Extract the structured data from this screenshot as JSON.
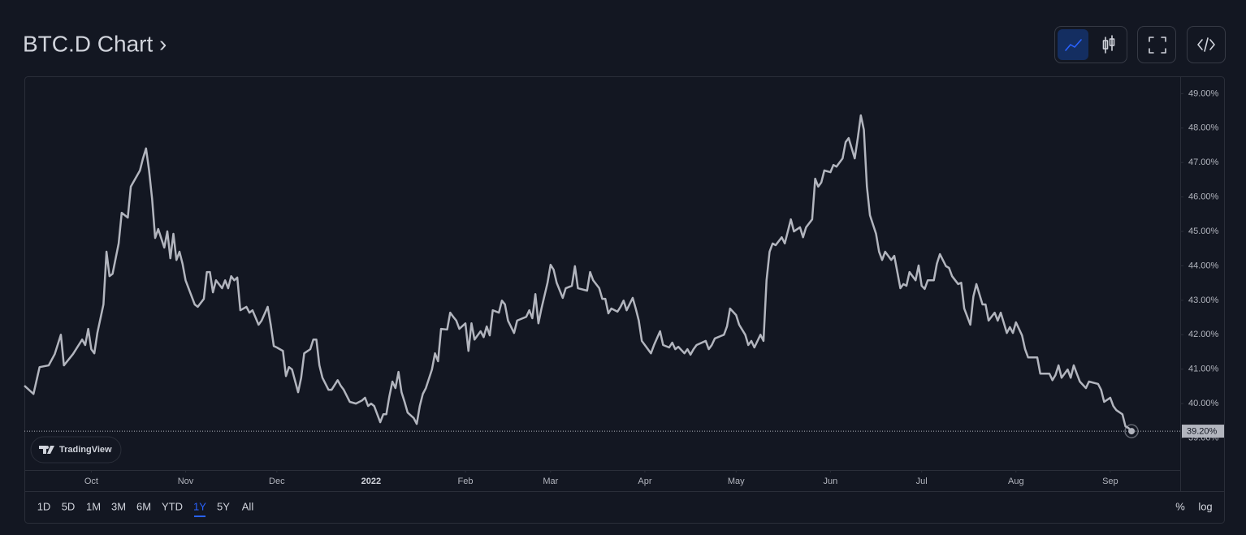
{
  "header": {
    "title": "BTC.D Chart ›"
  },
  "chart_data": {
    "type": "line",
    "x": [
      -22,
      -19,
      -17,
      -14,
      -12,
      -10,
      -9,
      -6,
      -3,
      -2,
      -1,
      0,
      1,
      2,
      4,
      5,
      6,
      7,
      9,
      10,
      12,
      13,
      16,
      17,
      18,
      19,
      20,
      21,
      22,
      24,
      25,
      26,
      27,
      28,
      29,
      30,
      31,
      34,
      35,
      37,
      38,
      39,
      40,
      41,
      43,
      44,
      45,
      46,
      47,
      48,
      49,
      51,
      52,
      53,
      55,
      56,
      58,
      59,
      60,
      61,
      63,
      64,
      65,
      66,
      68,
      69,
      70,
      72,
      73,
      74,
      75,
      76,
      78,
      79,
      81,
      82,
      83,
      85,
      87,
      89,
      90,
      91,
      92,
      93,
      95,
      96,
      97,
      98,
      99,
      100,
      101,
      102,
      103,
      104,
      106,
      107,
      108,
      109,
      110,
      112,
      113,
      114,
      115,
      117,
      118,
      119,
      120,
      121,
      123,
      124,
      125,
      126,
      128,
      129,
      130,
      131,
      132,
      134,
      135,
      136,
      137,
      139,
      140,
      143,
      144,
      145,
      146,
      147,
      148,
      150,
      151,
      152,
      153,
      155,
      156,
      158,
      159,
      160,
      163,
      164,
      165,
      167,
      168,
      169,
      170,
      171,
      173,
      174,
      175,
      176,
      178,
      179,
      180,
      181,
      183,
      184,
      185,
      187,
      188,
      190,
      191,
      192,
      193,
      195,
      196,
      197,
      198,
      199,
      202,
      203,
      204,
      205,
      208,
      209,
      210,
      212,
      213,
      215,
      216,
      217,
      218,
      220,
      221,
      222,
      223,
      224,
      225,
      227,
      228,
      229,
      230,
      231,
      233,
      234,
      235,
      237,
      238,
      239,
      240,
      241,
      243,
      244,
      245,
      247,
      248,
      249,
      251,
      252,
      253,
      254,
      255,
      256,
      258,
      259,
      260,
      261,
      263,
      264,
      266,
      267,
      268,
      269,
      271,
      272,
      273,
      274,
      275,
      277,
      278,
      279,
      281,
      282,
      283,
      285,
      286,
      287,
      289,
      290,
      291,
      293,
      294,
      295,
      297,
      298,
      299,
      301,
      302,
      303,
      304,
      306,
      307,
      308,
      311,
      312,
      315,
      316,
      317,
      318,
      319,
      321,
      322,
      323,
      324,
      325,
      327,
      328,
      331,
      332,
      333,
      335,
      336,
      337,
      339,
      340,
      341,
      342
    ],
    "series": [
      {
        "name": "BTC.D",
        "color": "#b2b5be",
        "values": [
          40.52,
          40.28,
          41.06,
          41.11,
          41.44,
          42.0,
          41.11,
          41.44,
          41.86,
          41.7,
          42.17,
          41.58,
          41.46,
          42.05,
          42.88,
          44.41,
          43.7,
          43.77,
          44.65,
          45.54,
          45.4,
          46.3,
          46.77,
          47.12,
          47.41,
          46.77,
          45.94,
          44.81,
          45.07,
          44.53,
          45.0,
          44.22,
          44.93,
          44.17,
          44.41,
          44.06,
          43.58,
          42.88,
          42.81,
          43.04,
          43.82,
          43.82,
          43.23,
          43.58,
          43.35,
          43.58,
          43.35,
          43.7,
          43.58,
          43.66,
          42.71,
          42.81,
          42.64,
          42.71,
          42.29,
          42.41,
          42.81,
          42.29,
          41.67,
          41.63,
          41.53,
          40.8,
          41.06,
          40.99,
          40.33,
          40.75,
          41.46,
          41.58,
          41.86,
          41.86,
          41.11,
          40.75,
          40.4,
          40.4,
          40.68,
          40.52,
          40.4,
          40.05,
          40.0,
          40.09,
          40.17,
          39.93,
          40.0,
          39.93,
          39.46,
          39.69,
          39.69,
          40.21,
          40.64,
          40.45,
          40.92,
          40.33,
          40.05,
          39.74,
          39.58,
          39.41,
          39.93,
          40.28,
          40.45,
          40.99,
          41.46,
          41.23,
          42.17,
          42.15,
          42.64,
          42.52,
          42.41,
          42.17,
          42.33,
          41.53,
          42.33,
          41.86,
          42.1,
          41.93,
          42.24,
          41.98,
          42.71,
          42.64,
          42.99,
          42.88,
          42.41,
          42.05,
          42.41,
          42.52,
          42.71,
          42.48,
          43.18,
          42.33,
          42.76,
          43.51,
          44.03,
          43.89,
          43.51,
          43.07,
          43.35,
          43.42,
          43.99,
          43.35,
          43.28,
          43.82,
          43.58,
          43.35,
          43.04,
          43.04,
          42.62,
          42.76,
          42.67,
          42.81,
          42.99,
          42.71,
          43.07,
          42.76,
          42.41,
          41.82,
          41.58,
          41.46,
          41.7,
          42.1,
          41.7,
          41.63,
          41.77,
          41.58,
          41.65,
          41.46,
          41.58,
          41.42,
          41.58,
          41.7,
          41.82,
          41.58,
          41.7,
          41.89,
          42.0,
          42.24,
          42.76,
          42.57,
          42.29,
          42.0,
          41.7,
          41.82,
          41.63,
          42.0,
          41.82,
          43.58,
          44.41,
          44.65,
          44.6,
          44.83,
          44.65,
          45.0,
          45.35,
          45.0,
          45.12,
          44.83,
          45.12,
          45.35,
          46.53,
          46.3,
          46.42,
          46.77,
          46.72,
          46.93,
          46.88,
          47.12,
          47.59,
          47.71,
          47.12,
          47.71,
          48.37,
          47.95,
          46.3,
          45.47,
          44.93,
          44.41,
          44.17,
          44.41,
          44.17,
          44.29,
          43.35,
          43.47,
          43.42,
          43.82,
          43.58,
          44.01,
          43.42,
          43.33,
          43.58,
          43.58,
          44.06,
          44.34,
          43.99,
          43.94,
          43.7,
          43.47,
          43.51,
          42.76,
          42.29,
          43.11,
          43.47,
          42.88,
          42.88,
          42.41,
          42.64,
          42.41,
          42.64,
          42.05,
          42.22,
          42.05,
          42.36,
          41.98,
          41.58,
          41.34,
          41.34,
          40.87,
          40.87,
          40.68,
          40.83,
          41.11,
          40.75,
          40.99,
          40.75,
          41.11,
          40.87,
          40.64,
          40.45,
          40.64,
          40.57,
          40.4,
          40.05,
          40.17,
          39.93,
          39.81,
          39.69,
          39.34,
          39.29,
          39.2
        ]
      }
    ],
    "xlim": [
      -22,
      358
    ],
    "xticks": [
      {
        "value": 0,
        "label": "Oct"
      },
      {
        "value": 31,
        "label": "Nov"
      },
      {
        "value": 61,
        "label": "Dec"
      },
      {
        "value": 92,
        "label": "2022"
      },
      {
        "value": 123,
        "label": "Feb"
      },
      {
        "value": 151,
        "label": "Mar"
      },
      {
        "value": 182,
        "label": "Apr"
      },
      {
        "value": 212,
        "label": "May"
      },
      {
        "value": 243,
        "label": "Jun"
      },
      {
        "value": 273,
        "label": "Jul"
      },
      {
        "value": 304,
        "label": "Aug"
      },
      {
        "value": 335,
        "label": "Sep"
      }
    ],
    "ylim": [
      38.07,
      49.48
    ],
    "yticks": [
      {
        "value": 39,
        "label": "39.00%"
      },
      {
        "value": 40,
        "label": "40.00%"
      },
      {
        "value": 41,
        "label": "41.00%"
      },
      {
        "value": 42,
        "label": "42.00%"
      },
      {
        "value": 43,
        "label": "43.00%"
      },
      {
        "value": 44,
        "label": "44.00%"
      },
      {
        "value": 45,
        "label": "45.00%"
      },
      {
        "value": 46,
        "label": "46.00%"
      },
      {
        "value": 47,
        "label": "47.00%"
      },
      {
        "value": 48,
        "label": "48.00%"
      },
      {
        "value": 49,
        "label": "49.00%"
      }
    ],
    "grid": false,
    "price_line": {
      "value": 39.2,
      "label": "39.20%"
    }
  },
  "branding": "TradingView",
  "range_buttons": [
    "1D",
    "5D",
    "1M",
    "3M",
    "6M",
    "YTD",
    "1Y",
    "5Y",
    "All"
  ],
  "selected_range": "1Y",
  "scale_options": [
    "%",
    "log"
  ]
}
